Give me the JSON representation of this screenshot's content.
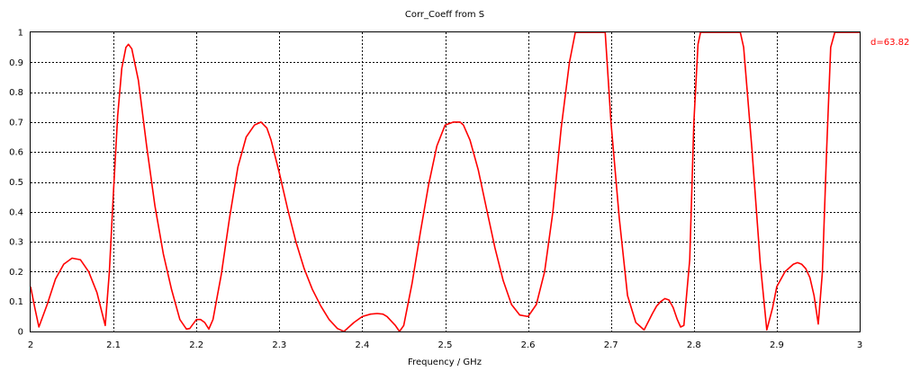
{
  "chart_data": {
    "type": "line",
    "title": "Corr_Coeff from S",
    "xlabel": "Frequency / GHz",
    "ylabel": "",
    "xlim": [
      2,
      3
    ],
    "ylim": [
      0,
      1
    ],
    "x_ticks": [
      "2",
      "2.1",
      "2.2",
      "2.3",
      "2.4",
      "2.5",
      "2.6",
      "2.7",
      "2.8",
      "2.9",
      "3"
    ],
    "y_ticks": [
      "0",
      "0.1",
      "0.2",
      "0.3",
      "0.4",
      "0.5",
      "0.6",
      "0.7",
      "0.8",
      "0.9",
      "1"
    ],
    "grid": true,
    "legend_position": "right",
    "series": [
      {
        "name": "d=63.82",
        "color": "#ff0000",
        "x": [
          2.0,
          2.005,
          2.01,
          2.02,
          2.03,
          2.04,
          2.05,
          2.06,
          2.07,
          2.08,
          2.09,
          2.095,
          2.1,
          2.105,
          2.11,
          2.115,
          2.118,
          2.122,
          2.13,
          2.14,
          2.15,
          2.16,
          2.17,
          2.18,
          2.188,
          2.192,
          2.2,
          2.205,
          2.21,
          2.215,
          2.22,
          2.23,
          2.24,
          2.25,
          2.26,
          2.27,
          2.278,
          2.285,
          2.29,
          2.3,
          2.31,
          2.32,
          2.33,
          2.34,
          2.35,
          2.36,
          2.37,
          2.378,
          2.39,
          2.4,
          2.41,
          2.418,
          2.425,
          2.43,
          2.44,
          2.445,
          2.45,
          2.46,
          2.47,
          2.48,
          2.49,
          2.5,
          2.51,
          2.518,
          2.522,
          2.53,
          2.54,
          2.55,
          2.56,
          2.57,
          2.58,
          2.59,
          2.6,
          2.61,
          2.62,
          2.63,
          2.64,
          2.65,
          2.657,
          2.662,
          2.68,
          2.69,
          2.693,
          2.7,
          2.71,
          2.72,
          2.73,
          2.74,
          2.75,
          2.755,
          2.76,
          2.765,
          2.77,
          2.775,
          2.78,
          2.784,
          2.788,
          2.795,
          2.8,
          2.805,
          2.808,
          2.815,
          2.85,
          2.856,
          2.86,
          2.87,
          2.88,
          2.888,
          2.895,
          2.9,
          2.91,
          2.92,
          2.925,
          2.93,
          2.935,
          2.94,
          2.945,
          2.95,
          2.955,
          2.96,
          2.965,
          2.97,
          2.98,
          2.99,
          3.0
        ],
        "y": [
          0.15,
          0.08,
          0.015,
          0.09,
          0.175,
          0.225,
          0.245,
          0.24,
          0.2,
          0.13,
          0.02,
          0.2,
          0.47,
          0.72,
          0.88,
          0.95,
          0.96,
          0.945,
          0.84,
          0.62,
          0.42,
          0.26,
          0.14,
          0.04,
          0.008,
          0.01,
          0.04,
          0.04,
          0.03,
          0.008,
          0.04,
          0.19,
          0.38,
          0.55,
          0.65,
          0.69,
          0.7,
          0.68,
          0.64,
          0.53,
          0.41,
          0.3,
          0.21,
          0.14,
          0.085,
          0.04,
          0.01,
          0.0,
          0.03,
          0.05,
          0.058,
          0.06,
          0.058,
          0.05,
          0.02,
          0.0,
          0.02,
          0.16,
          0.33,
          0.49,
          0.62,
          0.69,
          0.7,
          0.7,
          0.69,
          0.64,
          0.54,
          0.41,
          0.28,
          0.17,
          0.09,
          0.055,
          0.05,
          0.09,
          0.2,
          0.4,
          0.68,
          0.9,
          1.0,
          1.0,
          1.0,
          1.0,
          1.0,
          0.7,
          0.38,
          0.12,
          0.03,
          0.005,
          0.06,
          0.085,
          0.1,
          0.11,
          0.105,
          0.08,
          0.04,
          0.015,
          0.02,
          0.24,
          0.7,
          0.96,
          1.0,
          1.0,
          1.0,
          1.0,
          0.95,
          0.61,
          0.23,
          0.005,
          0.08,
          0.15,
          0.2,
          0.225,
          0.23,
          0.225,
          0.21,
          0.18,
          0.12,
          0.025,
          0.2,
          0.6,
          0.95,
          1.0,
          1.0,
          1.0,
          1.0
        ]
      }
    ]
  }
}
